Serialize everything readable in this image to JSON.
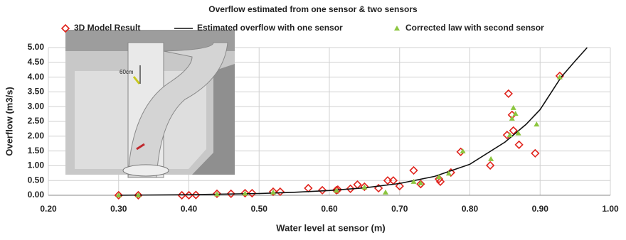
{
  "chart_data": {
    "type": "scatter",
    "title": "Overflow estimated from one sensor & two sensors",
    "x_label": "Water level at sensor (m)",
    "y_label": "Overflow (m3/s)",
    "inset_label": "60cm",
    "xlim": [
      0.2,
      1.0
    ],
    "xticks": [
      {
        "value": 0.2,
        "label": "0.20"
      },
      {
        "value": 0.3,
        "label": "0.30"
      },
      {
        "value": 0.4,
        "label": "0.40"
      },
      {
        "value": 0.5,
        "label": "0.50"
      },
      {
        "value": 0.6,
        "label": "0.60"
      },
      {
        "value": 0.7,
        "label": "0.70"
      },
      {
        "value": 0.8,
        "label": "0.80"
      },
      {
        "value": 0.9,
        "label": "0.90"
      },
      {
        "value": 1.0,
        "label": "1.00"
      }
    ],
    "ylim": [
      0,
      5
    ],
    "yticks": [
      {
        "value": 0,
        "label": "0.00"
      },
      {
        "value": 0.5,
        "label": "0.50"
      },
      {
        "value": 1,
        "label": "1.00"
      },
      {
        "value": 1.5,
        "label": "1.50"
      },
      {
        "value": 2,
        "label": "2.00"
      },
      {
        "value": 2.5,
        "label": "2.50"
      },
      {
        "value": 3,
        "label": "3.00"
      },
      {
        "value": 3.5,
        "label": "3.50"
      },
      {
        "value": 4,
        "label": "4.00"
      },
      {
        "value": 4.5,
        "label": "4.50"
      },
      {
        "value": 5,
        "label": "5.00"
      }
    ],
    "grid": true,
    "series": [
      {
        "name": "3D Model Result",
        "type": "scatter",
        "marker": "diamond",
        "color": "#e0231c",
        "x": [
          0.3,
          0.328,
          0.39,
          0.4,
          0.41,
          0.44,
          0.46,
          0.48,
          0.49,
          0.52,
          0.53,
          0.57,
          0.59,
          0.61,
          0.612,
          0.63,
          0.64,
          0.65,
          0.67,
          0.683,
          0.691,
          0.7,
          0.72,
          0.73,
          0.756,
          0.758,
          0.773,
          0.787,
          0.829,
          0.855,
          0.853,
          0.86,
          0.862,
          0.87,
          0.893,
          0.928
        ],
        "values": [
          0.0,
          0.0,
          0.0,
          0.0,
          0.01,
          0.05,
          0.05,
          0.07,
          0.07,
          0.12,
          0.12,
          0.24,
          0.17,
          0.17,
          0.19,
          0.22,
          0.36,
          0.29,
          0.24,
          0.5,
          0.5,
          0.31,
          0.84,
          0.38,
          0.55,
          0.46,
          0.77,
          1.47,
          1.01,
          3.44,
          2.04,
          2.72,
          2.19,
          1.71,
          1.42,
          4.04
        ]
      },
      {
        "name": "Estimated overflow with one sensor",
        "type": "line",
        "color": "#111111",
        "x": [
          0.3,
          0.4,
          0.5,
          0.55,
          0.6,
          0.65,
          0.7,
          0.75,
          0.8,
          0.85,
          0.88,
          0.9,
          0.93,
          0.95,
          0.967
        ],
        "values": [
          0.0,
          0.02,
          0.06,
          0.1,
          0.16,
          0.25,
          0.4,
          0.64,
          1.05,
          1.8,
          2.4,
          2.9,
          4.0,
          4.55,
          5.0
        ]
      },
      {
        "name": "Corrected law with second sensor",
        "type": "scatter",
        "marker": "triangle",
        "color": "#8cc63f",
        "x": [
          0.3,
          0.328,
          0.44,
          0.48,
          0.52,
          0.61,
          0.65,
          0.68,
          0.72,
          0.73,
          0.756,
          0.77,
          0.79,
          0.83,
          0.857,
          0.86,
          0.862,
          0.865,
          0.869,
          0.895,
          0.928
        ],
        "values": [
          0.0,
          0.0,
          0.04,
          0.06,
          0.1,
          0.16,
          0.27,
          0.1,
          0.46,
          0.41,
          0.62,
          0.74,
          1.49,
          1.23,
          2.04,
          2.6,
          2.96,
          2.76,
          2.1,
          2.4,
          4.0
        ]
      }
    ]
  }
}
